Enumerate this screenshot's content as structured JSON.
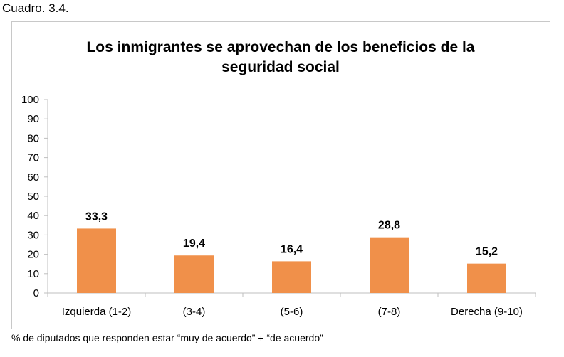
{
  "figure_caption": "Cuadro. 3.4.",
  "footnote": "% de diputados que responden estar “muy de acuerdo” + “de acuerdo”",
  "chart_data": {
    "type": "bar",
    "title_lines": [
      "Los inmigrantes se aprovechan de los beneficios de la",
      "seguridad social"
    ],
    "categories": [
      "Izquierda (1-2)",
      "(3-4)",
      "(5-6)",
      "(7-8)",
      "Derecha (9-10)"
    ],
    "values": [
      33.3,
      19.4,
      16.4,
      28.8,
      15.2
    ],
    "data_labels": [
      "33,3",
      "19,4",
      "16,4",
      "28,8",
      "15,2"
    ],
    "xlabel": "",
    "ylabel": "",
    "ylim": [
      0,
      100
    ],
    "yticks": [
      0,
      10,
      20,
      30,
      40,
      50,
      60,
      70,
      80,
      90,
      100
    ],
    "grid": false,
    "legend": "none",
    "bar_color": "#f0904a",
    "axis_color": "#bfbfbf"
  }
}
